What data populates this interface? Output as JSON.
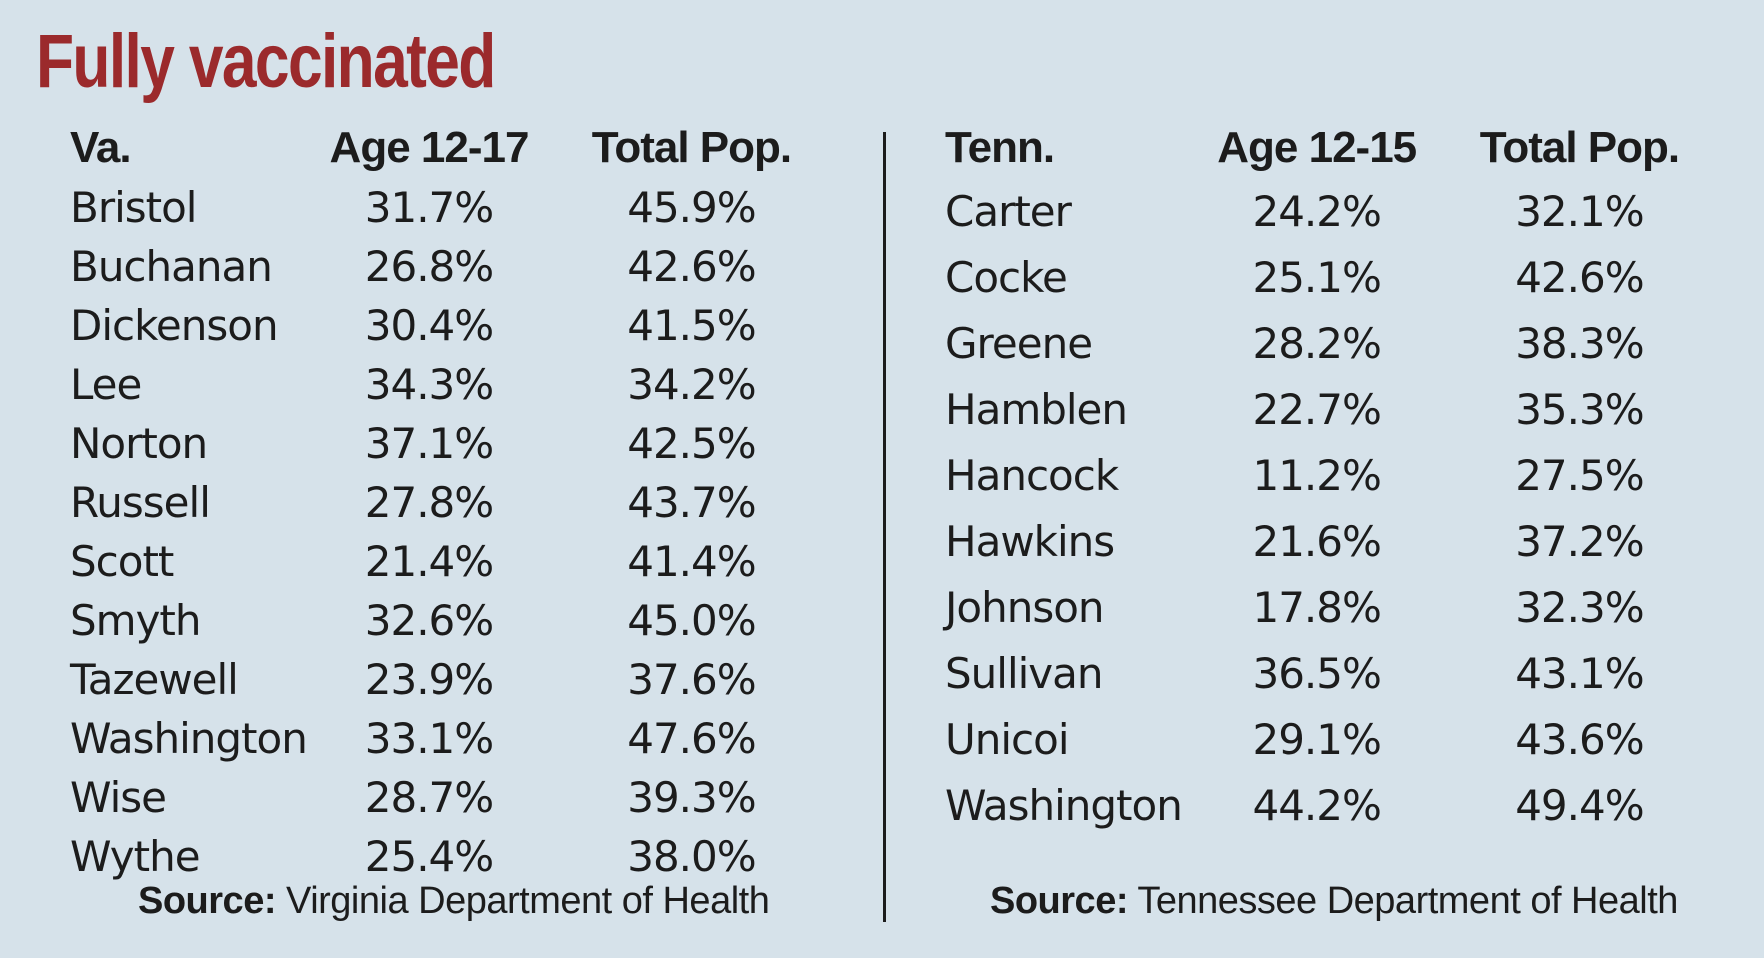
{
  "title": "Fully vaccinated",
  "chart_data": [
    {
      "type": "table",
      "columns": [
        "Va.",
        "Age 12-17",
        "Total Pop."
      ],
      "rows": [
        [
          "Bristol",
          "31.7%",
          "45.9%"
        ],
        [
          "Buchanan",
          "26.8%",
          "42.6%"
        ],
        [
          "Dickenson",
          "30.4%",
          "41.5%"
        ],
        [
          "Lee",
          "34.3%",
          "34.2%"
        ],
        [
          "Norton",
          "37.1%",
          "42.5%"
        ],
        [
          "Russell",
          "27.8%",
          "43.7%"
        ],
        [
          "Scott",
          "21.4%",
          "41.4%"
        ],
        [
          "Smyth",
          "32.6%",
          "45.0%"
        ],
        [
          "Tazewell",
          "23.9%",
          "37.6%"
        ],
        [
          "Washington",
          "33.1%",
          "47.6%"
        ],
        [
          "Wise",
          "28.7%",
          "39.3%"
        ],
        [
          "Wythe",
          "25.4%",
          "38.0%"
        ]
      ],
      "source_label": "Source:",
      "source": "Virginia Department of Health"
    },
    {
      "type": "table",
      "columns": [
        "Tenn.",
        "Age 12-15",
        "Total Pop."
      ],
      "rows": [
        [
          "Carter",
          "24.2%",
          "32.1%"
        ],
        [
          "Cocke",
          "25.1%",
          "42.6%"
        ],
        [
          "Greene",
          "28.2%",
          "38.3%"
        ],
        [
          "Hamblen",
          "22.7%",
          "35.3%"
        ],
        [
          "Hancock",
          "11.2%",
          "27.5%"
        ],
        [
          "Hawkins",
          "21.6%",
          "37.2%"
        ],
        [
          "Johnson",
          "17.8%",
          "32.3%"
        ],
        [
          "Sullivan",
          "36.5%",
          "43.1%"
        ],
        [
          "Unicoi",
          "29.1%",
          "43.6%"
        ],
        [
          "Washington",
          "44.2%",
          "49.4%"
        ]
      ],
      "source_label": "Source:",
      "source": "Tennessee Department of Health"
    }
  ],
  "colors": {
    "background": "#d6e2ea",
    "title": "#9b2a2c",
    "text": "#1c1c1c"
  }
}
